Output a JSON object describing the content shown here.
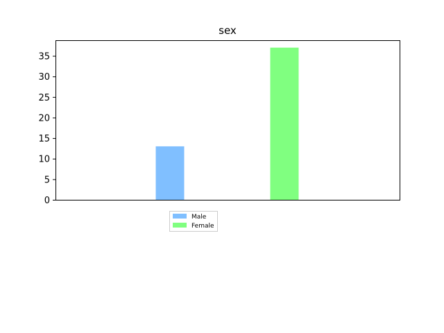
{
  "chart_data": {
    "type": "bar",
    "title": "sex",
    "xlabel": "",
    "ylabel": "",
    "ylim": [
      0,
      38.8
    ],
    "yticks": [
      0,
      5,
      10,
      15,
      20,
      25,
      30,
      35
    ],
    "grid": false,
    "legend_position": "below-left",
    "series": [
      {
        "name": "Male",
        "value": 13,
        "color": "#80bfff"
      },
      {
        "name": "Female",
        "value": 37,
        "color": "#80ff80"
      }
    ]
  }
}
